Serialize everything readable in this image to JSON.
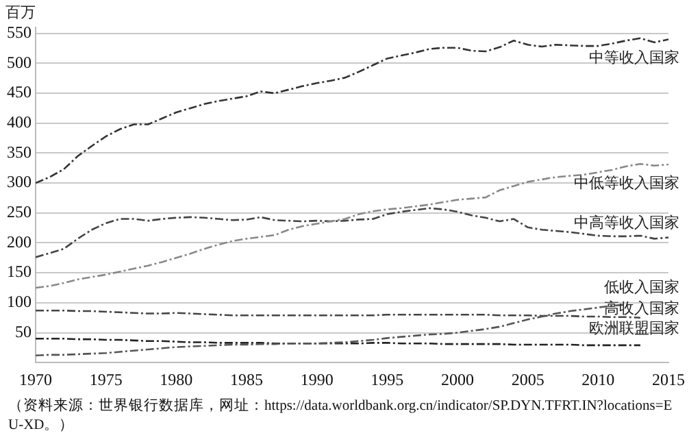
{
  "chart_data": {
    "type": "line",
    "ylabel": "百万",
    "x": [
      1970,
      1971,
      1972,
      1973,
      1974,
      1975,
      1976,
      1977,
      1978,
      1979,
      1980,
      1981,
      1982,
      1983,
      1984,
      1985,
      1986,
      1987,
      1988,
      1989,
      1990,
      1991,
      1992,
      1993,
      1994,
      1995,
      1996,
      1997,
      1998,
      1999,
      2000,
      2001,
      2002,
      2003,
      2004,
      2005,
      2006,
      2007,
      2008,
      2009,
      2010,
      2011,
      2012,
      2013,
      2014,
      2015
    ],
    "series": [
      {
        "name": "中等收入国家",
        "color": "#333333",
        "values": [
          300,
          310,
          323,
          345,
          362,
          378,
          390,
          398,
          398,
          408,
          418,
          425,
          432,
          437,
          441,
          445,
          453,
          450,
          456,
          462,
          467,
          471,
          476,
          486,
          497,
          508,
          513,
          518,
          524,
          526,
          526,
          521,
          520,
          527,
          538,
          531,
          528,
          531,
          530,
          529,
          529,
          533,
          538,
          542,
          535,
          540
        ]
      },
      {
        "name": "中低等收入国家",
        "color": "#888888",
        "values": [
          125,
          128,
          133,
          139,
          143,
          147,
          152,
          157,
          162,
          168,
          175,
          182,
          190,
          197,
          203,
          207,
          210,
          213,
          222,
          228,
          232,
          236,
          240,
          248,
          253,
          256,
          258,
          261,
          264,
          268,
          272,
          274,
          276,
          288,
          295,
          302,
          306,
          310,
          312,
          314,
          318,
          322,
          328,
          332,
          329,
          331
        ]
      },
      {
        "name": "中高等收入国家",
        "color": "#444444",
        "values": [
          176,
          183,
          190,
          207,
          222,
          233,
          240,
          240,
          237,
          240,
          242,
          243,
          242,
          240,
          238,
          239,
          243,
          238,
          237,
          236,
          237,
          236,
          237,
          239,
          240,
          248,
          252,
          255,
          258,
          256,
          252,
          246,
          242,
          236,
          240,
          226,
          222,
          220,
          218,
          215,
          212,
          211,
          211,
          212,
          207,
          209
        ]
      },
      {
        "name": "低收入国家",
        "color": "#555555",
        "values": [
          12,
          13,
          13,
          14,
          15,
          16,
          18,
          20,
          22,
          24,
          26,
          27,
          28,
          29,
          30,
          30,
          31,
          31,
          32,
          32,
          32,
          33,
          34,
          36,
          38,
          41,
          43,
          45,
          47,
          48,
          50,
          53,
          56,
          60,
          66,
          72,
          77,
          82,
          86,
          89,
          92,
          95,
          97,
          null,
          null,
          null
        ]
      },
      {
        "name": "高收入国家",
        "color": "#444444",
        "values": [
          87,
          87,
          87,
          86,
          86,
          85,
          84,
          83,
          82,
          82,
          83,
          82,
          81,
          80,
          79,
          79,
          79,
          79,
          79,
          79,
          79,
          79,
          79,
          79,
          79,
          80,
          80,
          80,
          80,
          80,
          80,
          80,
          80,
          79,
          79,
          79,
          78,
          78,
          78,
          77,
          77,
          76,
          76,
          75,
          null,
          null
        ]
      },
      {
        "name": "欧洲联盟国家",
        "color": "#222222",
        "values": [
          40,
          40,
          40,
          39,
          39,
          38,
          38,
          37,
          36,
          36,
          35,
          34,
          34,
          33,
          33,
          33,
          33,
          32,
          32,
          32,
          32,
          32,
          32,
          32,
          33,
          33,
          32,
          32,
          32,
          31,
          31,
          31,
          31,
          31,
          30,
          30,
          30,
          30,
          30,
          29,
          29,
          29,
          29,
          29,
          null,
          null
        ]
      }
    ],
    "xlim": [
      1970,
      2015
    ],
    "xticks": [
      1970,
      1975,
      1980,
      1985,
      1990,
      1995,
      2000,
      2005,
      2010,
      2015
    ],
    "ylim": [
      0,
      560
    ],
    "yticks": [
      50,
      100,
      150,
      200,
      250,
      300,
      350,
      400,
      450,
      500,
      550
    ],
    "grid": "y",
    "legend": false,
    "marker": "none",
    "line_style": "dashed",
    "annotations": [
      "（资料来源：世界银行数据库，网址：https://data.worldbank.org.cn/indicator/SP.DYN.TFRT.IN?locations=EU-XD。）"
    ]
  }
}
